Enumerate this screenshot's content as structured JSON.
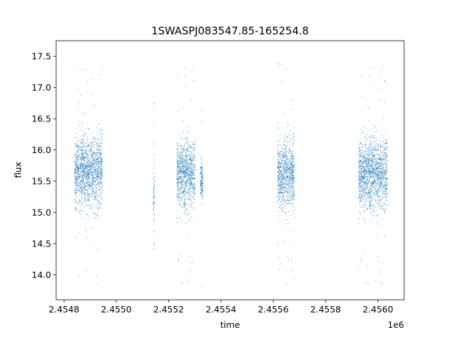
{
  "chart_data": {
    "type": "scatter",
    "title": "1SWASPJ083547.85-165254.8",
    "xlabel": "time",
    "ylabel": "flux",
    "x_offset_label": "1e6",
    "xlim": [
      2454770,
      2456100
    ],
    "ylim": [
      13.6,
      17.75
    ],
    "x_ticks": [
      2454800,
      2455000,
      2455200,
      2455400,
      2455600,
      2455800,
      2456000
    ],
    "x_tick_labels": [
      "2.4548",
      "2.4550",
      "2.4552",
      "2.4554",
      "2.4556",
      "2.4558",
      "2.4560"
    ],
    "y_ticks": [
      14.0,
      14.5,
      15.0,
      15.5,
      16.0,
      16.5,
      17.0,
      17.5
    ],
    "y_tick_labels": [
      "14.0",
      "14.5",
      "15.0",
      "15.5",
      "16.0",
      "16.5",
      "17.0",
      "17.5"
    ],
    "grid": false,
    "series": [
      {
        "color": "#1f77b4",
        "segments": [
          {
            "x_start": 2454840,
            "x_end": 2454945,
            "center": 15.65,
            "spread": 0.28
          },
          {
            "x_start": 2455140,
            "x_end": 2455145,
            "center": 15.2,
            "spread": 0.35
          },
          {
            "x_start": 2455230,
            "x_end": 2455300,
            "center": 15.62,
            "spread": 0.27
          },
          {
            "x_start": 2455320,
            "x_end": 2455330,
            "center": 15.5,
            "spread": 0.15
          },
          {
            "x_start": 2455615,
            "x_end": 2455680,
            "center": 15.6,
            "spread": 0.28
          },
          {
            "x_start": 2455925,
            "x_end": 2456035,
            "center": 15.62,
            "spread": 0.28
          }
        ]
      }
    ]
  }
}
